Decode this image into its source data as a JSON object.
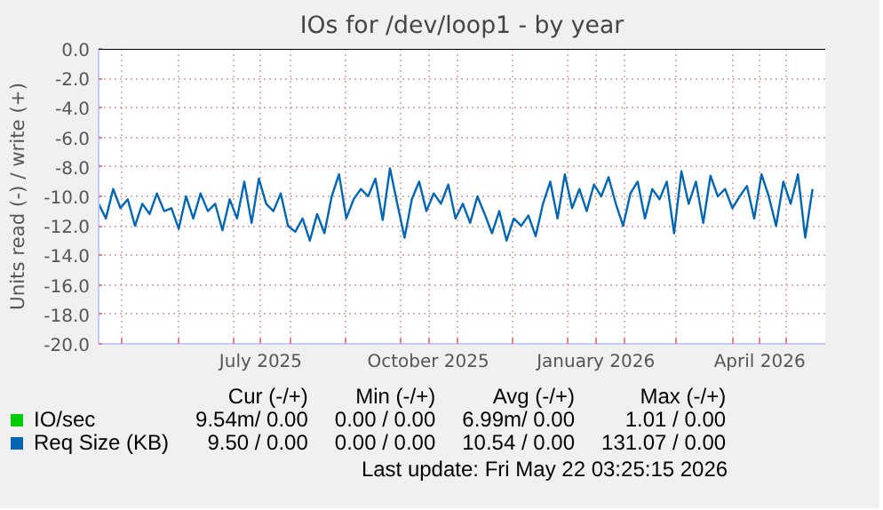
{
  "chart_data": {
    "type": "line",
    "title": "IOs for /dev/loop1 - by year",
    "ylabel": "Units read (-) / write (+)",
    "xlim": [
      "2025-04-18",
      "2026-05-22"
    ],
    "xticks": [
      {
        "value": "2025-05-01",
        "label": null
      },
      {
        "value": "2025-06-01",
        "label": null
      },
      {
        "value": "2025-07-01",
        "label": null
      },
      {
        "value": "2025-07-16",
        "label": "July 2025"
      },
      {
        "value": "2025-08-01",
        "label": null
      },
      {
        "value": "2025-09-01",
        "label": null
      },
      {
        "value": "2025-10-01",
        "label": null
      },
      {
        "value": "2025-10-16",
        "label": "October 2025"
      },
      {
        "value": "2025-11-01",
        "label": null
      },
      {
        "value": "2025-12-01",
        "label": null
      },
      {
        "value": "2026-01-01",
        "label": null
      },
      {
        "value": "2026-01-16",
        "label": "January 2026"
      },
      {
        "value": "2026-02-01",
        "label": null
      },
      {
        "value": "2026-03-01",
        "label": null
      },
      {
        "value": "2026-04-01",
        "label": null
      },
      {
        "value": "2026-04-16",
        "label": "April 2026"
      },
      {
        "value": "2026-05-01",
        "label": null
      }
    ],
    "ylim": [
      -20,
      0
    ],
    "yticks": [
      {
        "value": 0,
        "label": "0.0"
      },
      {
        "value": -2,
        "label": "-2.0"
      },
      {
        "value": -4,
        "label": "-4.0"
      },
      {
        "value": -6,
        "label": "-6.0"
      },
      {
        "value": -8,
        "label": "-8.0"
      },
      {
        "value": -10,
        "label": "-10.0"
      },
      {
        "value": -12,
        "label": "-12.0"
      },
      {
        "value": -14,
        "label": "-14.0"
      },
      {
        "value": -16,
        "label": "-16.0"
      },
      {
        "value": -18,
        "label": "-18.0"
      },
      {
        "value": -20,
        "label": "-20.0"
      }
    ],
    "grid": true,
    "legend": "bottom",
    "ref_lines": [
      {
        "axis": "y",
        "value": 0,
        "color": "#000000"
      }
    ],
    "series": [
      {
        "name": "IO/sec",
        "color": "#00cc00"
      },
      {
        "name": "Req Size (KB)",
        "color": "#0066b3",
        "x": [
          "2025-04-18",
          "2025-04-22",
          "2025-04-26",
          "2025-04-30",
          "2025-05-04",
          "2025-05-08",
          "2025-05-12",
          "2025-05-16",
          "2025-05-20",
          "2025-05-24",
          "2025-05-28",
          "2025-06-01",
          "2025-06-05",
          "2025-06-09",
          "2025-06-13",
          "2025-06-17",
          "2025-06-21",
          "2025-06-25",
          "2025-06-29",
          "2025-07-03",
          "2025-07-07",
          "2025-07-11",
          "2025-07-15",
          "2025-07-19",
          "2025-07-23",
          "2025-07-27",
          "2025-07-31",
          "2025-08-04",
          "2025-08-08",
          "2025-08-12",
          "2025-08-16",
          "2025-08-20",
          "2025-08-24",
          "2025-08-28",
          "2025-09-01",
          "2025-09-05",
          "2025-09-09",
          "2025-09-13",
          "2025-09-17",
          "2025-09-21",
          "2025-09-25",
          "2025-09-29",
          "2025-10-03",
          "2025-10-07",
          "2025-10-11",
          "2025-10-15",
          "2025-10-19",
          "2025-10-23",
          "2025-10-27",
          "2025-10-31",
          "2025-11-04",
          "2025-11-08",
          "2025-11-12",
          "2025-11-16",
          "2025-11-20",
          "2025-11-24",
          "2025-11-28",
          "2025-12-02",
          "2025-12-06",
          "2025-12-10",
          "2025-12-14",
          "2025-12-18",
          "2025-12-22",
          "2025-12-26",
          "2025-12-30",
          "2026-01-03",
          "2026-01-07",
          "2026-01-11",
          "2026-01-15",
          "2026-01-19",
          "2026-01-23",
          "2026-01-27",
          "2026-01-31",
          "2026-02-04",
          "2026-02-08",
          "2026-02-12",
          "2026-02-16",
          "2026-02-20",
          "2026-02-24",
          "2026-02-28",
          "2026-03-04",
          "2026-03-08",
          "2026-03-12",
          "2026-03-16",
          "2026-03-20",
          "2026-03-24",
          "2026-03-28",
          "2026-04-01",
          "2026-04-05",
          "2026-04-09",
          "2026-04-13",
          "2026-04-17",
          "2026-04-21",
          "2026-04-25",
          "2026-04-29",
          "2026-05-03",
          "2026-05-07",
          "2026-05-11",
          "2026-05-15"
        ],
        "values": [
          -10.5,
          -11.5,
          -9.5,
          -10.8,
          -10.2,
          -12.0,
          -10.5,
          -11.2,
          -9.8,
          -11.0,
          -10.8,
          -12.2,
          -10.0,
          -11.5,
          -9.8,
          -11.0,
          -10.5,
          -12.3,
          -10.2,
          -11.5,
          -9.0,
          -11.8,
          -8.8,
          -10.5,
          -11.0,
          -9.8,
          -12.0,
          -12.4,
          -11.5,
          -13.0,
          -11.2,
          -12.5,
          -10.0,
          -8.5,
          -11.5,
          -10.2,
          -9.5,
          -10.0,
          -8.8,
          -11.6,
          -8.1,
          -10.5,
          -12.8,
          -10.2,
          -9.0,
          -11.0,
          -9.8,
          -10.5,
          -9.2,
          -11.5,
          -10.5,
          -11.8,
          -10.0,
          -11.2,
          -12.5,
          -11.0,
          -13.0,
          -11.5,
          -12.0,
          -11.3,
          -12.7,
          -10.5,
          -9.0,
          -11.5,
          -8.5,
          -10.8,
          -9.5,
          -11.0,
          -9.2,
          -10.0,
          -8.7,
          -10.5,
          -12.0,
          -9.8,
          -9.0,
          -11.5,
          -9.5,
          -10.2,
          -9.0,
          -12.5,
          -8.3,
          -10.5,
          -9.0,
          -11.8,
          -8.6,
          -10.0,
          -9.5,
          -10.8,
          -10.0,
          -9.3,
          -11.5,
          -8.5,
          -10.0,
          -12.0,
          -9.0,
          -10.5,
          -8.5,
          -12.8,
          -9.5
        ]
      }
    ],
    "annotations": [
      "Cur (-/+)",
      "Min (-/+)",
      "Avg (-/+)",
      "Max (-/+)",
      "9.54m/ 0.00",
      "0.00 / 0.00",
      "6.99m/ 0.00",
      "1.01 / 0.00",
      "9.50 / 0.00",
      "0.00 / 0.00",
      "10.54 / 0.00",
      "131.07 / 0.00",
      "Last update: Fri May 22 03:25:15 2026"
    ]
  }
}
